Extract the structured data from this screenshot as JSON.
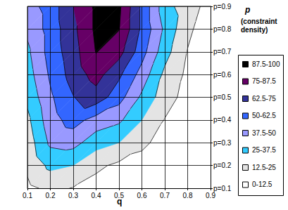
{
  "chart_data": {
    "type": "contour",
    "title": "p",
    "subtitle": "(constraint density)",
    "x_label": "q",
    "x": [
      0.1,
      0.2,
      0.3,
      0.4,
      0.5,
      0.6,
      0.7,
      0.8,
      0.9
    ],
    "y": [
      0.1,
      0.2,
      0.3,
      0.4,
      0.5,
      0.6,
      0.7,
      0.8,
      0.9
    ],
    "z": [
      [
        10,
        15,
        12,
        8,
        5,
        3,
        2,
        1,
        0
      ],
      [
        15,
        28,
        25,
        15,
        10,
        8,
        5,
        2,
        0
      ],
      [
        18,
        40,
        42,
        30,
        25,
        15,
        8,
        3,
        0
      ],
      [
        22,
        45,
        55,
        45,
        40,
        25,
        12,
        5,
        0
      ],
      [
        28,
        48,
        62,
        70,
        55,
        35,
        18,
        8,
        1
      ],
      [
        32,
        52,
        68,
        80,
        65,
        45,
        22,
        10,
        2
      ],
      [
        35,
        55,
        70,
        88,
        80,
        55,
        30,
        12,
        3
      ],
      [
        40,
        55,
        72,
        90,
        88,
        60,
        35,
        15,
        5
      ],
      [
        45,
        55,
        75,
        90,
        90,
        60,
        30,
        18,
        8
      ]
    ],
    "levels": [
      0,
      12.5,
      25,
      37.5,
      50,
      62.5,
      75,
      87.5,
      100
    ],
    "level_labels": [
      "0-12.5",
      "12.5-25",
      "25-37.5",
      "37.5-50",
      "50-62.5",
      "62.5-75",
      "75-87.5",
      "87.5-100"
    ],
    "colors": [
      "#ffffff",
      "#e4e4e4",
      "#33ccff",
      "#9999ff",
      "#3366ff",
      "#333399",
      "#660066",
      "#000000"
    ],
    "xlim": [
      0.1,
      0.9
    ],
    "ylim": [
      0.1,
      0.9
    ],
    "xticks": [
      0.1,
      0.2,
      0.3,
      0.4,
      0.5,
      0.6,
      0.7,
      0.8,
      0.9
    ],
    "yticks": [
      {
        "value": 0.1,
        "label": "p=0.1"
      },
      {
        "value": 0.2,
        "label": "p=0.2"
      },
      {
        "value": 0.3,
        "label": "p=0.3"
      },
      {
        "value": 0.4,
        "label": "p=0.4"
      },
      {
        "value": 0.5,
        "label": "p=0.5"
      },
      {
        "value": 0.6,
        "label": "p=0.6"
      },
      {
        "value": 0.7,
        "label": "p=0.7"
      },
      {
        "value": 0.8,
        "label": "p=0.8"
      },
      {
        "value": 0.9,
        "label": "p=0.9"
      }
    ],
    "grid": true
  }
}
